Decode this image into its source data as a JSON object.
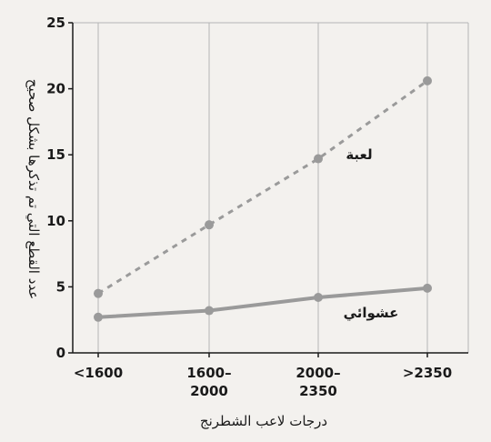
{
  "chart_data": {
    "type": "line",
    "categories": [
      "<1600",
      "1600–\n2000",
      "2000–\n2350",
      ">2350"
    ],
    "series": [
      {
        "name": "لعبة",
        "style": "dashed",
        "color": "#9a9a9a",
        "values": [
          4.5,
          9.7,
          14.7,
          20.6
        ]
      },
      {
        "name": "عشوائي",
        "style": "solid",
        "color": "#9a9a9a",
        "values": [
          2.7,
          3.2,
          4.2,
          4.9
        ]
      }
    ],
    "ylim": [
      0,
      25
    ],
    "yticks": [
      0,
      5,
      10,
      15,
      20,
      25
    ],
    "xlabel": "درجات لاعب الشطرنج",
    "ylabel": "عدد القطع التي تم تذكرها بشكل صحيح",
    "grid": true,
    "colors": {
      "axis": "#1a1a1a",
      "grid": "#b5b5b5",
      "series": "#9a9a9a"
    }
  }
}
